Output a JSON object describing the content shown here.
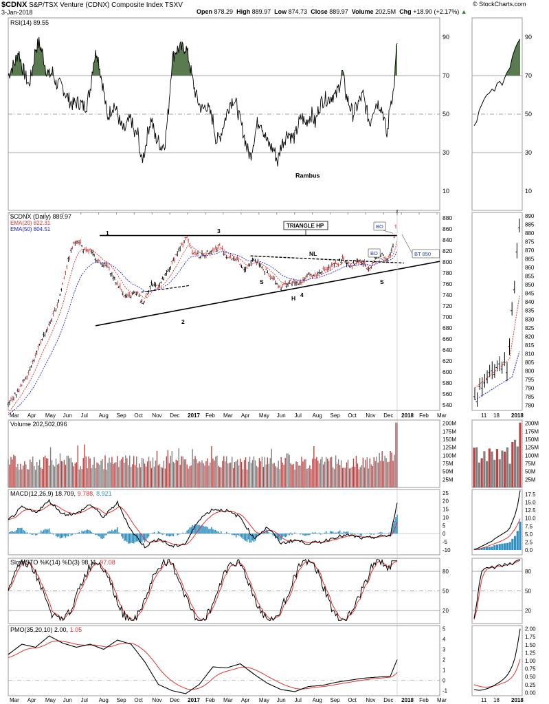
{
  "header": {
    "symbol": "$CDNX",
    "name": "S&P/TSX Venture (CDNX) Composite Index",
    "exchange": "TSXV",
    "date": "3-Jan-2018",
    "open_label": "Open",
    "open": "878.29",
    "high_label": "High",
    "high": "889.97",
    "low_label": "Low",
    "low": "874.73",
    "close_label": "Close",
    "close": "889.97",
    "volume_label": "Volume",
    "volume": "202.5M",
    "chg_label": "Chg",
    "chg": "+18.90 (+2.17%)",
    "credit": "© StockCharts.com"
  },
  "colors": {
    "up": "#000000",
    "down": "#d03030",
    "volume_up": "#808080",
    "volume_down": "#c04040",
    "ema20": "#e03030",
    "ema50": "#2020c0",
    "rsi_fill": "#5a7a50",
    "macd_signal": "#e03030",
    "macd_hist": "#3090c0",
    "grid": "#b0b0b0"
  },
  "chart_data": [
    {
      "type": "line",
      "panel": "rsi",
      "legend": "RSI(14) 89.55",
      "yticks": [
        10,
        30,
        50,
        70,
        90
      ],
      "ylim": [
        0,
        100
      ],
      "annotation": "Rambus",
      "series": [
        {
          "name": "RSI(14)",
          "x": [
            0,
            5,
            10,
            15,
            20,
            25,
            30,
            35,
            40,
            45,
            50,
            55,
            60,
            65,
            70,
            75,
            80,
            85,
            90,
            95,
            100,
            105,
            110,
            115,
            120,
            125,
            130,
            135,
            140,
            145,
            150,
            155,
            160,
            165,
            170,
            175,
            180,
            185,
            190,
            195,
            200,
            205,
            210,
            215,
            220,
            225,
            230,
            235,
            240,
            245,
            250,
            255,
            260,
            265,
            270,
            275,
            280,
            285,
            290,
            295,
            300,
            305,
            310,
            315,
            320,
            325,
            330,
            335,
            340,
            345,
            350,
            355,
            360,
            365,
            370,
            375,
            380,
            385,
            390,
            395,
            400,
            405,
            410,
            415,
            420,
            425,
            430,
            435,
            440,
            445,
            450,
            455,
            460,
            465,
            470,
            475,
            480,
            485,
            490,
            495,
            500,
            505,
            510,
            515,
            520,
            525,
            530,
            535,
            540,
            545,
            550,
            555,
            560,
            565,
            570
          ],
          "values": [
            70,
            74,
            77,
            83,
            75,
            70,
            65,
            72,
            84,
            87,
            82,
            74,
            70,
            72,
            66,
            65,
            64,
            60,
            57,
            55,
            56,
            56,
            54,
            55,
            63,
            78,
            83,
            72,
            62,
            48,
            52,
            55,
            50,
            44,
            41,
            45,
            48,
            39,
            40,
            25,
            31,
            42,
            48,
            38,
            36,
            33,
            36,
            53,
            78,
            83,
            84,
            84,
            85,
            78,
            68,
            60,
            55,
            52,
            55,
            51,
            47,
            36,
            38,
            44,
            50,
            56,
            58,
            54,
            46,
            40,
            32,
            28,
            37,
            45,
            47,
            40,
            35,
            33,
            31,
            25,
            34,
            37,
            41,
            38,
            38,
            44,
            49,
            45,
            48,
            50,
            45,
            53,
            57,
            58,
            58,
            60,
            59,
            65,
            72,
            60,
            55,
            50,
            53,
            57,
            60,
            52,
            45,
            53,
            56,
            55,
            50,
            38,
            56,
            62,
            88
          ]
        }
      ]
    },
    {
      "type": "line",
      "panel": "price",
      "legend": "$CDNX (Daily) 889.97",
      "ema20_legend": "EMA(20) 822.31",
      "ema50_legend": "EMA(50) 804.51",
      "yticks": [
        540,
        560,
        580,
        600,
        620,
        640,
        660,
        680,
        700,
        720,
        740,
        760,
        780,
        800,
        820,
        840,
        860,
        880
      ],
      "ylim": [
        530,
        890
      ],
      "xticks": [
        "Mar",
        "Apr",
        "May",
        "Jun",
        "Jul",
        "Aug",
        "Sep",
        "Oct",
        "Nov",
        "Dec",
        "2017",
        "Feb",
        "Mar",
        "Apr",
        "May",
        "Jun",
        "Jul",
        "Aug",
        "Sep",
        "Oct",
        "Nov",
        "Dec",
        "2018",
        "Feb",
        "Mar"
      ],
      "annotations": {
        "triangle": "TRIANGLE HP",
        "nl": "NL",
        "p1": "1",
        "p2": "2",
        "p3": "3",
        "p4": "4",
        "s_left": "S",
        "h": "H",
        "s_right": "S",
        "bo1": "BO",
        "bo2": "BO",
        "bt": "BT 850"
      },
      "series": [
        {
          "name": "$CDNX",
          "x": [
            0,
            5,
            10,
            15,
            20,
            25,
            30,
            35,
            40,
            45,
            50,
            55,
            60,
            65,
            70,
            75,
            80,
            85,
            90,
            95,
            100,
            105,
            110,
            115,
            120,
            125,
            130,
            135,
            140,
            145,
            150,
            155,
            160,
            165,
            170,
            175,
            180,
            185,
            190,
            195,
            200,
            205,
            210,
            215,
            220,
            225,
            230,
            235,
            240,
            245,
            250,
            255,
            260,
            265,
            270,
            275,
            280,
            285,
            290,
            295,
            300,
            305,
            310,
            315,
            320,
            325,
            330,
            335,
            340,
            345,
            350,
            355,
            360,
            365,
            370,
            375,
            380,
            385,
            390,
            395,
            400,
            405,
            410,
            415,
            420,
            425,
            430,
            435,
            440,
            445,
            450,
            455,
            460,
            465,
            470,
            475,
            480,
            485,
            490,
            495,
            500,
            505,
            510,
            515,
            520,
            525,
            530,
            535,
            540,
            545,
            550,
            555,
            560,
            565,
            570
          ],
          "values": [
            540,
            548,
            558,
            566,
            575,
            589,
            600,
            616,
            628,
            645,
            662,
            672,
            684,
            700,
            715,
            735,
            760,
            790,
            810,
            830,
            840,
            838,
            822,
            818,
            820,
            812,
            806,
            798,
            795,
            792,
            782,
            770,
            760,
            752,
            740,
            735,
            738,
            743,
            742,
            725,
            730,
            748,
            760,
            758,
            757,
            764,
            773,
            783,
            797,
            810,
            820,
            832,
            845,
            838,
            820,
            815,
            810,
            812,
            815,
            820,
            822,
            825,
            830,
            820,
            810,
            808,
            806,
            804,
            795,
            785,
            790,
            798,
            805,
            800,
            796,
            785,
            780,
            770,
            768,
            758,
            754,
            758,
            760,
            764,
            760,
            763,
            766,
            770,
            774,
            777,
            775,
            780,
            785,
            786,
            788,
            792,
            796,
            800,
            806,
            800,
            796,
            795,
            800,
            802,
            798,
            792,
            790,
            798,
            808,
            814,
            813,
            805,
            812,
            830,
            890
          ]
        }
      ]
    },
    {
      "type": "bar",
      "panel": "volume",
      "legend": "Volume 202,502,096",
      "yticks_labels": [
        "25M",
        "50M",
        "75M",
        "100M",
        "125M",
        "150M",
        "175M",
        "200M"
      ],
      "ylim": [
        0,
        210
      ],
      "unit": "M"
    },
    {
      "type": "line",
      "panel": "macd",
      "legend_name": "MACD(12,26,9)",
      "legend_macd": "18.709",
      "legend_signal": "9.788",
      "legend_hist": "8.921",
      "yticks": [
        -10,
        -5,
        0,
        5,
        10,
        15,
        20,
        25
      ],
      "ylim": [
        -13,
        27
      ]
    },
    {
      "type": "line",
      "panel": "sto",
      "legend_name": "Slow STO %K(14) %D(3)",
      "legend_k": "98.11",
      "legend_d": "97.08",
      "yticks": [
        20,
        50,
        80
      ],
      "ylim": [
        0,
        100
      ]
    },
    {
      "type": "line",
      "panel": "pmo",
      "legend_name": "PMO(35,20,10)",
      "legend_pmo": "2.00",
      "legend_signal": "1.05",
      "yticks": [
        -1,
        0,
        1,
        2,
        3,
        4,
        5
      ],
      "ylim": [
        -1.5,
        5.3
      ]
    }
  ],
  "zoom": {
    "xticks": [
      "11",
      "18",
      "2018"
    ],
    "rsi_yticks": [
      10,
      30,
      50,
      70,
      90
    ],
    "price_yticks": [
      780,
      785,
      790,
      795,
      800,
      805,
      810,
      815,
      820,
      825,
      830,
      835,
      840,
      845,
      850,
      855,
      860,
      865,
      870,
      875,
      880,
      885,
      890
    ],
    "vol_labels": [
      "25M",
      "50M",
      "75M",
      "100M",
      "125M",
      "150M",
      "175M",
      "200M"
    ],
    "macd_yticks": [
      "0.0",
      "2.5",
      "5.0",
      "7.5",
      "10.0",
      "12.5",
      "15.0",
      "17.5"
    ],
    "sto_yticks": [
      20,
      50,
      80
    ],
    "pmo_yticks": [
      "0.00",
      "0.25",
      "0.50",
      "0.75",
      "1.00",
      "1.25",
      "1.50",
      "1.75",
      "2.00"
    ]
  }
}
